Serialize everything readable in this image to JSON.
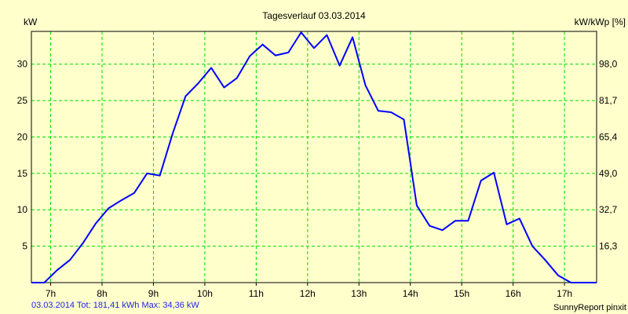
{
  "chart_data": {
    "type": "line",
    "title": "Tagesverlauf 03.03.2014",
    "ylabel": "kW",
    "ylabel_right": "kW/kWp [%]",
    "xlabel": "",
    "xlim": [
      6.625,
      17.625
    ],
    "ylim": [
      0,
      34.5
    ],
    "grid": true,
    "x_ticks": [
      7,
      8,
      9,
      10,
      11,
      12,
      13,
      14,
      15,
      16,
      17
    ],
    "x_tick_labels": [
      "7h",
      "8h",
      "9h",
      "10h",
      "11h",
      "12h",
      "13h",
      "14h",
      "15h",
      "16h",
      "17h"
    ],
    "y_ticks": [
      5,
      10,
      15,
      20,
      25,
      30
    ],
    "y_tick_labels": [
      "5",
      "10",
      "15",
      "20",
      "25",
      "30"
    ],
    "y_right_tick_labels": [
      "16,3",
      "32,7",
      "49,0",
      "65,4",
      "81,7",
      "98,0"
    ],
    "series": [
      {
        "name": "kW",
        "color": "#0000FF",
        "x": [
          6.625,
          6.875,
          7.125,
          7.375,
          7.625,
          7.875,
          8.125,
          8.375,
          8.625,
          8.875,
          9.125,
          9.375,
          9.625,
          9.875,
          10.125,
          10.375,
          10.625,
          10.875,
          11.125,
          11.375,
          11.625,
          11.875,
          12.125,
          12.375,
          12.625,
          12.875,
          13.125,
          13.375,
          13.625,
          13.875,
          14.125,
          14.375,
          14.625,
          14.875,
          15.125,
          15.375,
          15.625,
          15.875,
          16.125,
          16.375,
          16.625,
          16.875,
          17.125,
          17.375,
          17.625
        ],
        "values": [
          0,
          0,
          1.7,
          3.1,
          5.4,
          8.1,
          10.2,
          11.3,
          12.3,
          15.0,
          14.7,
          20.5,
          25.6,
          27.4,
          29.5,
          26.8,
          28.1,
          31.1,
          32.7,
          31.2,
          31.6,
          34.36,
          32.2,
          34.0,
          29.8,
          33.7,
          27.1,
          23.6,
          23.4,
          22.4,
          10.6,
          7.8,
          7.2,
          8.5,
          8.5,
          14.0,
          15.1,
          8.0,
          8.8,
          5.0,
          3.1,
          1.0,
          0,
          0,
          0
        ]
      }
    ],
    "grid_color": "#00DD00",
    "background": "#FFFFCC"
  },
  "footer": {
    "summary": "03.03.2014 Tot: 181,41 kWh Max: 34,36 kW",
    "credit": "SunnyReport pinxit"
  }
}
